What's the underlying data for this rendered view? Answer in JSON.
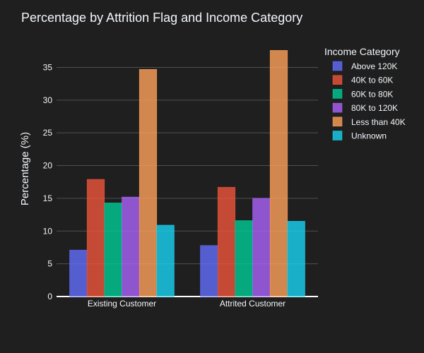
{
  "chart_data": {
    "type": "bar",
    "title": "Percentage by Attrition Flag and Income Category",
    "xlabel": "",
    "ylabel": "Percentage (%)",
    "ylim": [
      0,
      38.5
    ],
    "yticks": [
      "0",
      "5",
      "10",
      "15",
      "20",
      "25",
      "30",
      "35"
    ],
    "grid": true,
    "legend_title": "Income Category",
    "legend_position": "top-right",
    "categories": [
      "Existing Customer",
      "Attrited Customer"
    ],
    "series": [
      {
        "name": "Above 120K",
        "color": "#636efa",
        "values": [
          7.1,
          7.8
        ]
      },
      {
        "name": "40K to 60K",
        "color": "#ef553b",
        "values": [
          17.9,
          16.7
        ]
      },
      {
        "name": "60K to 80K",
        "color": "#00cc96",
        "values": [
          14.3,
          11.6
        ]
      },
      {
        "name": "80K to 120K",
        "color": "#ab63fa",
        "values": [
          15.2,
          15.0
        ]
      },
      {
        "name": "Less than 40K",
        "color": "#ffa15a",
        "values": [
          34.7,
          37.6
        ]
      },
      {
        "name": "Unknown",
        "color": "#19d3f3",
        "values": [
          10.9,
          11.5
        ]
      }
    ]
  }
}
